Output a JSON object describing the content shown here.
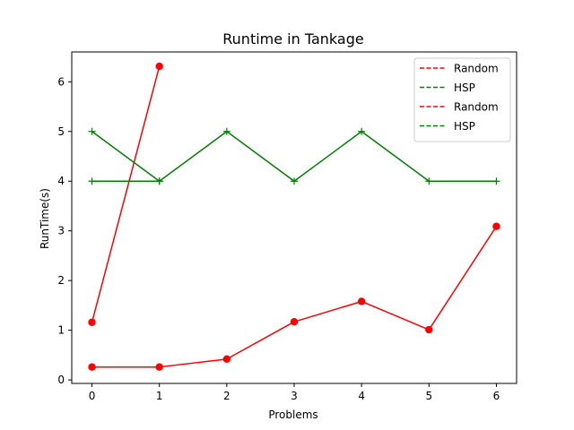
{
  "chart_data": {
    "type": "line",
    "title": "Runtime in Tankage",
    "xlabel": "Problems",
    "ylabel": "RunTime(s)",
    "xlim": [
      -0.3,
      6.3
    ],
    "ylim": [
      -0.07,
      6.6
    ],
    "xticks": [
      0,
      1,
      2,
      3,
      4,
      5,
      6
    ],
    "xtick_labels": [
      "0",
      "1",
      "2",
      "3",
      "4",
      "5",
      "6"
    ],
    "yticks": [
      0,
      1,
      2,
      3,
      4,
      5,
      6
    ],
    "ytick_labels": [
      "0",
      "1",
      "2",
      "3",
      "4",
      "5",
      "6"
    ],
    "grid": false,
    "legend_position": "top-right",
    "legend": [
      {
        "label": "Random",
        "color": "#ff0000",
        "linestyle": "dashed"
      },
      {
        "label": "HSP",
        "color": "#008000",
        "linestyle": "dashed"
      },
      {
        "label": "Random",
        "color": "#ff0000",
        "linestyle": "dashed"
      },
      {
        "label": "HSP",
        "color": "#008000",
        "linestyle": "dashed"
      }
    ],
    "series": [
      {
        "color": "#ff0000",
        "marker": "circle",
        "x": [
          0,
          1
        ],
        "y": [
          1.16,
          6.31
        ]
      },
      {
        "color": "#ff0000",
        "marker": "circle",
        "x": [
          0,
          1,
          2,
          3,
          4,
          5,
          6
        ],
        "y": [
          0.26,
          0.26,
          0.42,
          1.17,
          1.58,
          1.01,
          3.09
        ]
      },
      {
        "color": "#008000",
        "marker": "plus",
        "x": [
          0,
          1
        ],
        "y": [
          5,
          4
        ]
      },
      {
        "color": "#008000",
        "marker": "plus",
        "x": [
          0,
          1,
          2,
          3,
          4,
          5,
          6
        ],
        "y": [
          4,
          4,
          5,
          4,
          5,
          4,
          4
        ]
      }
    ]
  }
}
